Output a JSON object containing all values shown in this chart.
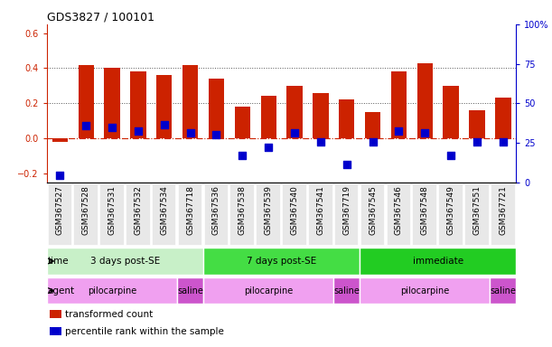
{
  "title": "GDS3827 / 100101",
  "samples": [
    "GSM367527",
    "GSM367528",
    "GSM367531",
    "GSM367532",
    "GSM367534",
    "GSM367718",
    "GSM367536",
    "GSM367538",
    "GSM367539",
    "GSM367540",
    "GSM367541",
    "GSM367719",
    "GSM367545",
    "GSM367546",
    "GSM367548",
    "GSM367549",
    "GSM367551",
    "GSM367721"
  ],
  "red_values": [
    -0.02,
    0.42,
    0.4,
    0.38,
    0.36,
    0.42,
    0.34,
    0.18,
    0.24,
    0.3,
    0.26,
    0.22,
    0.15,
    0.38,
    0.43,
    0.3,
    0.16,
    0.23
  ],
  "blue_values": [
    -0.21,
    0.07,
    0.06,
    0.04,
    0.08,
    0.03,
    0.02,
    -0.1,
    -0.05,
    0.03,
    -0.02,
    -0.15,
    -0.02,
    0.04,
    0.03,
    -0.1,
    -0.02,
    -0.02
  ],
  "time_groups": [
    {
      "label": "3 days post-SE",
      "start": 0,
      "end": 6,
      "color": "#c8f0c8"
    },
    {
      "label": "7 days post-SE",
      "start": 6,
      "end": 12,
      "color": "#44dd44"
    },
    {
      "label": "immediate",
      "start": 12,
      "end": 18,
      "color": "#22cc22"
    }
  ],
  "agent_groups": [
    {
      "label": "pilocarpine",
      "start": 0,
      "end": 5,
      "color": "#f0a0f0"
    },
    {
      "label": "saline",
      "start": 5,
      "end": 6,
      "color": "#cc55cc"
    },
    {
      "label": "pilocarpine",
      "start": 6,
      "end": 11,
      "color": "#f0a0f0"
    },
    {
      "label": "saline",
      "start": 11,
      "end": 12,
      "color": "#cc55cc"
    },
    {
      "label": "pilocarpine",
      "start": 12,
      "end": 17,
      "color": "#f0a0f0"
    },
    {
      "label": "saline",
      "start": 17,
      "end": 18,
      "color": "#cc55cc"
    }
  ],
  "ylim": [
    -0.25,
    0.65
  ],
  "yticks_left": [
    -0.2,
    0.0,
    0.2,
    0.4,
    0.6
  ],
  "yticks_right": [
    0,
    25,
    50,
    75,
    100
  ],
  "right_axis_color": "#0000cc",
  "left_axis_color": "#cc2200",
  "bar_color": "#cc2200",
  "blue_color": "#0000cc",
  "zero_line_color": "#cc2200",
  "dotted_line_color": "#555555",
  "dotted_levels": [
    0.2,
    0.4
  ],
  "bar_width": 0.6,
  "label_fontsize": 6.5,
  "tick_fontsize": 7.0,
  "time_label": "time",
  "agent_label": "agent",
  "legend_labels": [
    "transformed count",
    "percentile rank within the sample"
  ],
  "bg_color": "#ffffff",
  "box_color": "#cccccc"
}
